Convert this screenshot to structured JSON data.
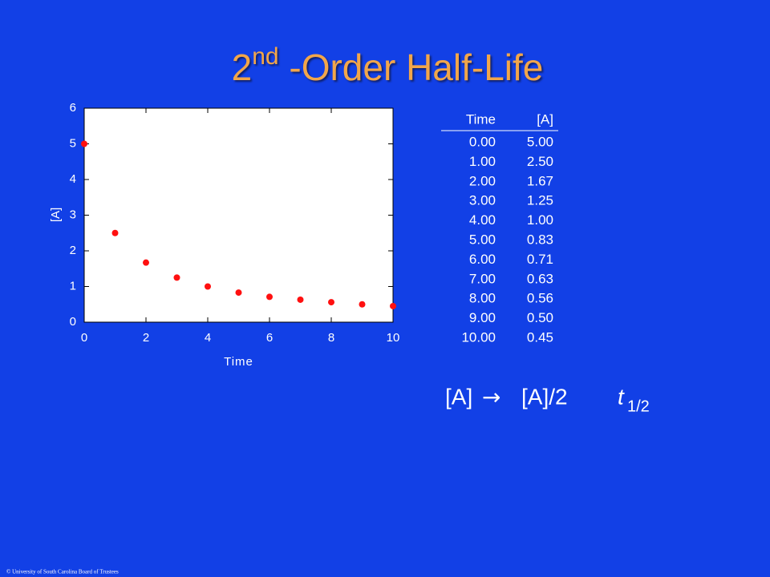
{
  "slide": {
    "title_main": "2",
    "title_sup": "nd",
    "title_rest": " -Order Half-Life",
    "footer": "© University of South Carolina Board of Trustees"
  },
  "chart_data": {
    "type": "line",
    "xlabel": "Time",
    "ylabel": "[A]",
    "x": [
      0,
      1,
      2,
      3,
      4,
      5,
      6,
      7,
      8,
      9,
      10
    ],
    "series": [
      {
        "color": "#ff1010",
        "line_color": "#ffffff",
        "values": [
          5.0,
          2.5,
          1.67,
          1.25,
          1.0,
          0.83,
          0.71,
          0.63,
          0.56,
          0.5,
          0.45
        ]
      }
    ],
    "xlim": [
      0,
      10
    ],
    "xticks": [
      0,
      2,
      4,
      6,
      8,
      10
    ],
    "ylim": [
      0,
      6
    ],
    "yticks": [
      0,
      1,
      2,
      3,
      4,
      5,
      6
    ]
  },
  "table": {
    "header": [
      "Time",
      "[A]"
    ],
    "rows": [
      [
        "0.00",
        "5.00"
      ],
      [
        "1.00",
        "2.50"
      ],
      [
        "2.00",
        "1.67"
      ],
      [
        "3.00",
        "1.25"
      ],
      [
        "4.00",
        "1.00"
      ],
      [
        "5.00",
        "0.83"
      ],
      [
        "6.00",
        "0.71"
      ],
      [
        "7.00",
        "0.63"
      ],
      [
        "8.00",
        "0.56"
      ],
      [
        "9.00",
        "0.50"
      ],
      [
        "10.00",
        "0.45"
      ]
    ]
  },
  "equation": {
    "left": "[A]",
    "arrow": "→",
    "right": "[A]/2",
    "t": "t",
    "sub": "1/2"
  }
}
